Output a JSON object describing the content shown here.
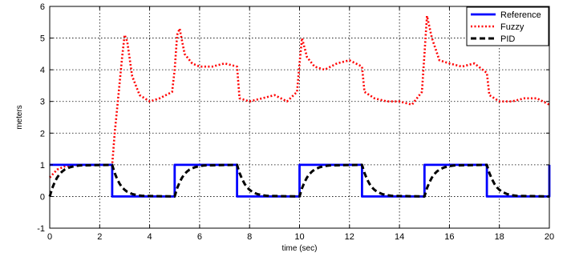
{
  "chart_data": {
    "type": "line",
    "xlabel": "time (sec)",
    "ylabel": "meters",
    "xlim": [
      0,
      20
    ],
    "ylim": [
      -1,
      6
    ],
    "xticks": [
      0,
      2,
      4,
      6,
      8,
      10,
      12,
      14,
      16,
      18,
      20
    ],
    "yticks": [
      -1,
      0,
      1,
      2,
      3,
      4,
      5,
      6
    ],
    "xtick_labels": [
      "0",
      "2",
      "4",
      "6",
      "8",
      "10",
      "12",
      "14",
      "16",
      "18",
      "20"
    ],
    "ytick_labels": [
      "-1",
      "0",
      "1",
      "2",
      "3",
      "4",
      "5",
      "6"
    ],
    "grid": true,
    "legend_position": "top-right",
    "series": [
      {
        "name": "Reference",
        "color": "#0000ff",
        "style": "solid",
        "x": [
          0,
          2.5,
          2.5,
          5,
          5,
          7.5,
          7.5,
          10,
          10,
          12.5,
          12.5,
          15,
          15,
          17.5,
          17.5,
          20,
          20
        ],
        "y": [
          1,
          1,
          0,
          0,
          1,
          1,
          0,
          0,
          1,
          1,
          0,
          0,
          1,
          1,
          0,
          0,
          1
        ]
      },
      {
        "name": "Fuzzy",
        "color": "#ff0000",
        "style": "dotted",
        "x": [
          0,
          0.3,
          0.6,
          1.0,
          2.5,
          2.6,
          2.75,
          2.9,
          3.0,
          3.1,
          3.3,
          3.6,
          4.0,
          4.4,
          4.9,
          5.0,
          5.1,
          5.2,
          5.4,
          5.7,
          6.0,
          6.5,
          7.0,
          7.5,
          7.6,
          8.0,
          8.5,
          9.0,
          9.5,
          9.9,
          10.0,
          10.1,
          10.3,
          10.6,
          11.0,
          11.5,
          12.0,
          12.5,
          12.6,
          13.0,
          13.5,
          14.0,
          14.5,
          14.9,
          15.0,
          15.1,
          15.3,
          15.6,
          16.0,
          16.5,
          17.0,
          17.5,
          17.6,
          18.0,
          18.5,
          19.0,
          19.5,
          20.0
        ],
        "y": [
          0.6,
          0.85,
          0.95,
          1.0,
          1.0,
          2.0,
          3.2,
          4.4,
          5.1,
          4.9,
          3.8,
          3.2,
          3.0,
          3.1,
          3.3,
          4.0,
          5.1,
          5.3,
          4.5,
          4.2,
          4.1,
          4.1,
          4.2,
          4.1,
          3.1,
          3.0,
          3.1,
          3.2,
          3.0,
          3.3,
          4.2,
          5.0,
          4.4,
          4.1,
          4.0,
          4.2,
          4.3,
          4.1,
          3.3,
          3.1,
          3.0,
          3.0,
          2.9,
          3.3,
          4.5,
          5.7,
          5.0,
          4.3,
          4.2,
          4.1,
          4.2,
          3.9,
          3.2,
          3.0,
          3.0,
          3.1,
          3.1,
          2.9
        ]
      },
      {
        "name": "PID",
        "color": "#000000",
        "style": "dashed",
        "x": [
          0,
          0.1,
          0.2,
          0.3,
          0.4,
          0.5,
          0.6,
          0.8,
          1.0,
          1.2,
          2.5,
          2.6,
          2.7,
          2.8,
          2.9,
          3.0,
          3.1,
          3.3,
          3.5,
          3.7,
          5.0,
          5.1,
          5.2,
          5.3,
          5.4,
          5.5,
          5.6,
          5.8,
          6.0,
          6.2,
          7.5,
          7.6,
          7.7,
          7.8,
          7.9,
          8.0,
          8.1,
          8.3,
          8.5,
          8.7,
          10.0,
          10.1,
          10.2,
          10.3,
          10.4,
          10.5,
          10.6,
          10.8,
          11.0,
          11.2,
          12.5,
          12.6,
          12.7,
          12.8,
          12.9,
          13.0,
          13.1,
          13.3,
          13.5,
          13.7,
          15.0,
          15.1,
          15.2,
          15.3,
          15.4,
          15.5,
          15.6,
          15.8,
          16.0,
          16.2,
          17.5,
          17.6,
          17.7,
          17.8,
          17.9,
          18.0,
          18.1,
          18.3,
          18.5,
          18.7,
          20.0
        ],
        "y": [
          0,
          0.26,
          0.45,
          0.6,
          0.71,
          0.79,
          0.85,
          0.92,
          0.96,
          0.98,
          1.0,
          0.74,
          0.55,
          0.4,
          0.29,
          0.21,
          0.15,
          0.08,
          0.04,
          0.02,
          0.0,
          0.26,
          0.45,
          0.6,
          0.71,
          0.79,
          0.85,
          0.92,
          0.96,
          0.98,
          1.0,
          0.74,
          0.55,
          0.4,
          0.29,
          0.21,
          0.15,
          0.08,
          0.04,
          0.02,
          0.0,
          0.26,
          0.45,
          0.6,
          0.71,
          0.79,
          0.85,
          0.92,
          0.96,
          0.98,
          1.0,
          0.74,
          0.55,
          0.4,
          0.29,
          0.21,
          0.15,
          0.08,
          0.04,
          0.02,
          0.0,
          0.26,
          0.45,
          0.6,
          0.71,
          0.79,
          0.85,
          0.92,
          0.96,
          0.98,
          1.0,
          0.74,
          0.55,
          0.4,
          0.29,
          0.21,
          0.15,
          0.08,
          0.04,
          0.02,
          0.0
        ]
      }
    ]
  }
}
